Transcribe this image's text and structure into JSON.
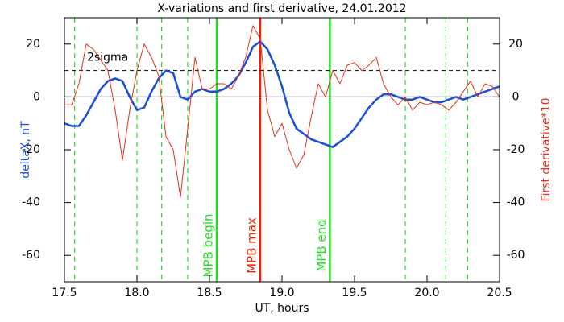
{
  "chart_data": {
    "type": "line",
    "title": "X-variations and first derivative, 24.01.2012",
    "x_label": "UT, hours",
    "y_label": "deltaX, nT",
    "y2_label": "First derivative*10",
    "x": [
      17.5,
      17.55,
      17.6,
      17.65,
      17.7,
      17.75,
      17.8,
      17.85,
      17.9,
      17.95,
      18.0,
      18.05,
      18.1,
      18.15,
      18.2,
      18.25,
      18.3,
      18.35,
      18.4,
      18.45,
      18.5,
      18.55,
      18.6,
      18.65,
      18.7,
      18.75,
      18.8,
      18.85,
      18.9,
      18.95,
      19.0,
      19.05,
      19.1,
      19.15,
      19.2,
      19.25,
      19.3,
      19.35,
      19.4,
      19.45,
      19.5,
      19.55,
      19.6,
      19.65,
      19.7,
      19.75,
      19.8,
      19.85,
      19.9,
      19.95,
      20.0,
      20.05,
      20.1,
      20.15,
      20.2,
      20.25,
      20.3,
      20.35,
      20.4,
      20.45,
      20.5
    ],
    "series": [
      {
        "name": "deltaX",
        "color": "#1a4fd6",
        "values": [
          -10,
          -11,
          -11,
          -7,
          -2,
          3,
          6,
          7,
          6,
          0,
          -5,
          -4,
          2,
          7,
          10,
          9,
          0,
          -1,
          2,
          3,
          2,
          2,
          3,
          5,
          8,
          13,
          19,
          21,
          18,
          12,
          4,
          -6,
          -12,
          -14,
          -16,
          -17,
          -18,
          -19,
          -17,
          -15,
          -12,
          -8,
          -4,
          -1,
          1,
          1,
          0,
          -1,
          -1,
          0,
          -1,
          -2,
          -2,
          -1,
          0,
          -1,
          0,
          1,
          2,
          3,
          4
        ]
      },
      {
        "name": "First derivative*10",
        "color": "#e0301c",
        "axis": "y2",
        "values": [
          -3,
          -3,
          5,
          20,
          18,
          14,
          10,
          -5,
          -24,
          -5,
          10,
          20,
          15,
          8,
          -15,
          -20,
          -38,
          -12,
          15,
          3,
          3,
          5,
          5,
          3,
          8,
          15,
          27,
          22,
          -5,
          -15,
          -10,
          -20,
          -27,
          -22,
          -8,
          5,
          0,
          10,
          5,
          12,
          13,
          10,
          12,
          15,
          5,
          0,
          -3,
          0,
          -5,
          -2,
          -3,
          -2,
          -3,
          -5,
          -2,
          2,
          6,
          0,
          5,
          4,
          0
        ]
      }
    ],
    "xlim": [
      17.5,
      20.5
    ],
    "xticks": [
      17.5,
      {
        "value": 18,
        "label": "18.0"
      },
      18.5,
      {
        "value": 19,
        "label": "19.0"
      },
      19.5,
      {
        "value": 20,
        "label": "20.0"
      },
      20.5
    ],
    "ylim": [
      -70,
      30
    ],
    "yticks": [
      -60,
      -40,
      -20,
      0,
      20
    ],
    "y2lim": [
      -70,
      30
    ],
    "y2ticks": [
      -60,
      -40,
      -20,
      0,
      20
    ],
    "hlines": [
      {
        "value": 10,
        "label": "2sigma",
        "color": "#000000",
        "style": "dashed"
      },
      {
        "value": 0,
        "color": "#000000",
        "style": "solid"
      }
    ],
    "vlines": [
      {
        "value": 17.57,
        "color": "#22dd22",
        "style": "dashed"
      },
      {
        "value": 18.0,
        "color": "#22dd22",
        "style": "dashed"
      },
      {
        "value": 18.17,
        "color": "#22dd22",
        "style": "dashed"
      },
      {
        "value": 18.35,
        "color": "#22dd22",
        "style": "dashed"
      },
      {
        "value": 18.55,
        "color": "#22dd22",
        "style": "solid",
        "label": "MPB begin"
      },
      {
        "value": 18.85,
        "color": "#ee2200",
        "style": "solid",
        "label": "MPB max"
      },
      {
        "value": 19.33,
        "color": "#22dd22",
        "style": "solid",
        "label": "MPB end"
      },
      {
        "value": 19.85,
        "color": "#22dd22",
        "style": "dashed"
      },
      {
        "value": 20.13,
        "color": "#22dd22",
        "style": "dashed"
      },
      {
        "value": 20.28,
        "color": "#22dd22",
        "style": "dashed"
      }
    ]
  }
}
